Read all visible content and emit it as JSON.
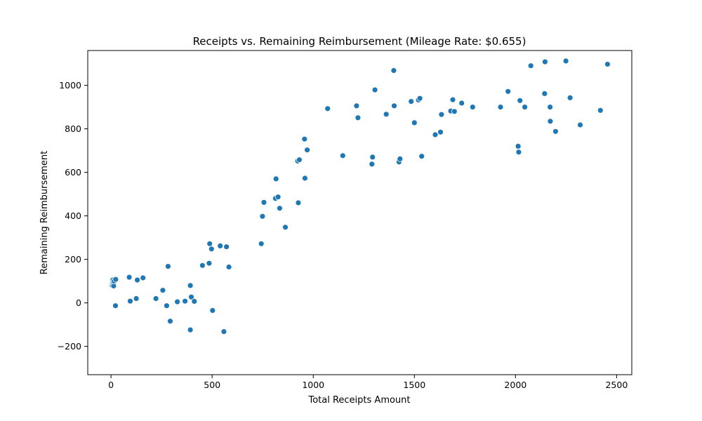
{
  "chart_data": {
    "type": "scatter",
    "title": "Receipts vs. Remaining Reimbursement (Mileage Rate: $0.655)",
    "xlabel": "Total Receipts Amount",
    "ylabel": "Remaining Reimbursement",
    "xlim": [
      -115,
      2575
    ],
    "ylim": [
      -330,
      1160
    ],
    "xticks": [
      0,
      500,
      1000,
      1500,
      2000,
      2500
    ],
    "xtick_labels": [
      "0",
      "500",
      "1000",
      "1500",
      "2000",
      "2500"
    ],
    "yticks": [
      -200,
      0,
      200,
      400,
      600,
      800,
      1000
    ],
    "ytick_labels": [
      "−200",
      "0",
      "200",
      "400",
      "600",
      "800",
      "1000"
    ],
    "grid": false,
    "marker_color": "#1f77b4",
    "x": [
      5,
      7,
      9,
      10,
      12,
      13,
      15,
      22,
      23,
      90,
      95,
      125,
      130,
      158,
      222,
      256,
      275,
      282,
      293,
      328,
      366,
      392,
      392,
      397,
      412,
      452,
      485,
      488,
      497,
      502,
      540,
      558,
      571,
      583,
      743,
      749,
      756,
      813,
      816,
      826,
      834,
      862,
      923,
      926,
      931,
      957,
      959,
      970,
      1071,
      1146,
      1214,
      1221,
      1290,
      1293,
      1305,
      1361,
      1398,
      1400,
      1424,
      1429,
      1484,
      1500,
      1520,
      1527,
      1536,
      1603,
      1629,
      1634,
      1680,
      1690,
      1698,
      1734,
      1788,
      1926,
      1963,
      2013,
      2016,
      2022,
      2046,
      2076,
      2144,
      2146,
      2171,
      2172,
      2198,
      2249,
      2270,
      2320,
      2420,
      2455
    ],
    "y": [
      82,
      90,
      105,
      95,
      88,
      78,
      100,
      -13,
      108,
      118,
      8,
      20,
      105,
      115,
      20,
      58,
      -13,
      168,
      -84,
      5,
      8,
      80,
      -124,
      27,
      7,
      172,
      182,
      272,
      248,
      -35,
      262,
      -132,
      258,
      165,
      272,
      398,
      462,
      480,
      570,
      487,
      435,
      348,
      652,
      460,
      658,
      753,
      573,
      703,
      893,
      677,
      906,
      851,
      638,
      670,
      979,
      867,
      1068,
      906,
      648,
      662,
      926,
      828,
      933,
      940,
      674,
      773,
      785,
      866,
      882,
      934,
      880,
      918,
      900,
      900,
      972,
      720,
      693,
      930,
      900,
      1090,
      962,
      1108,
      900,
      835,
      788,
      1112,
      943,
      818,
      885,
      1097
    ]
  }
}
